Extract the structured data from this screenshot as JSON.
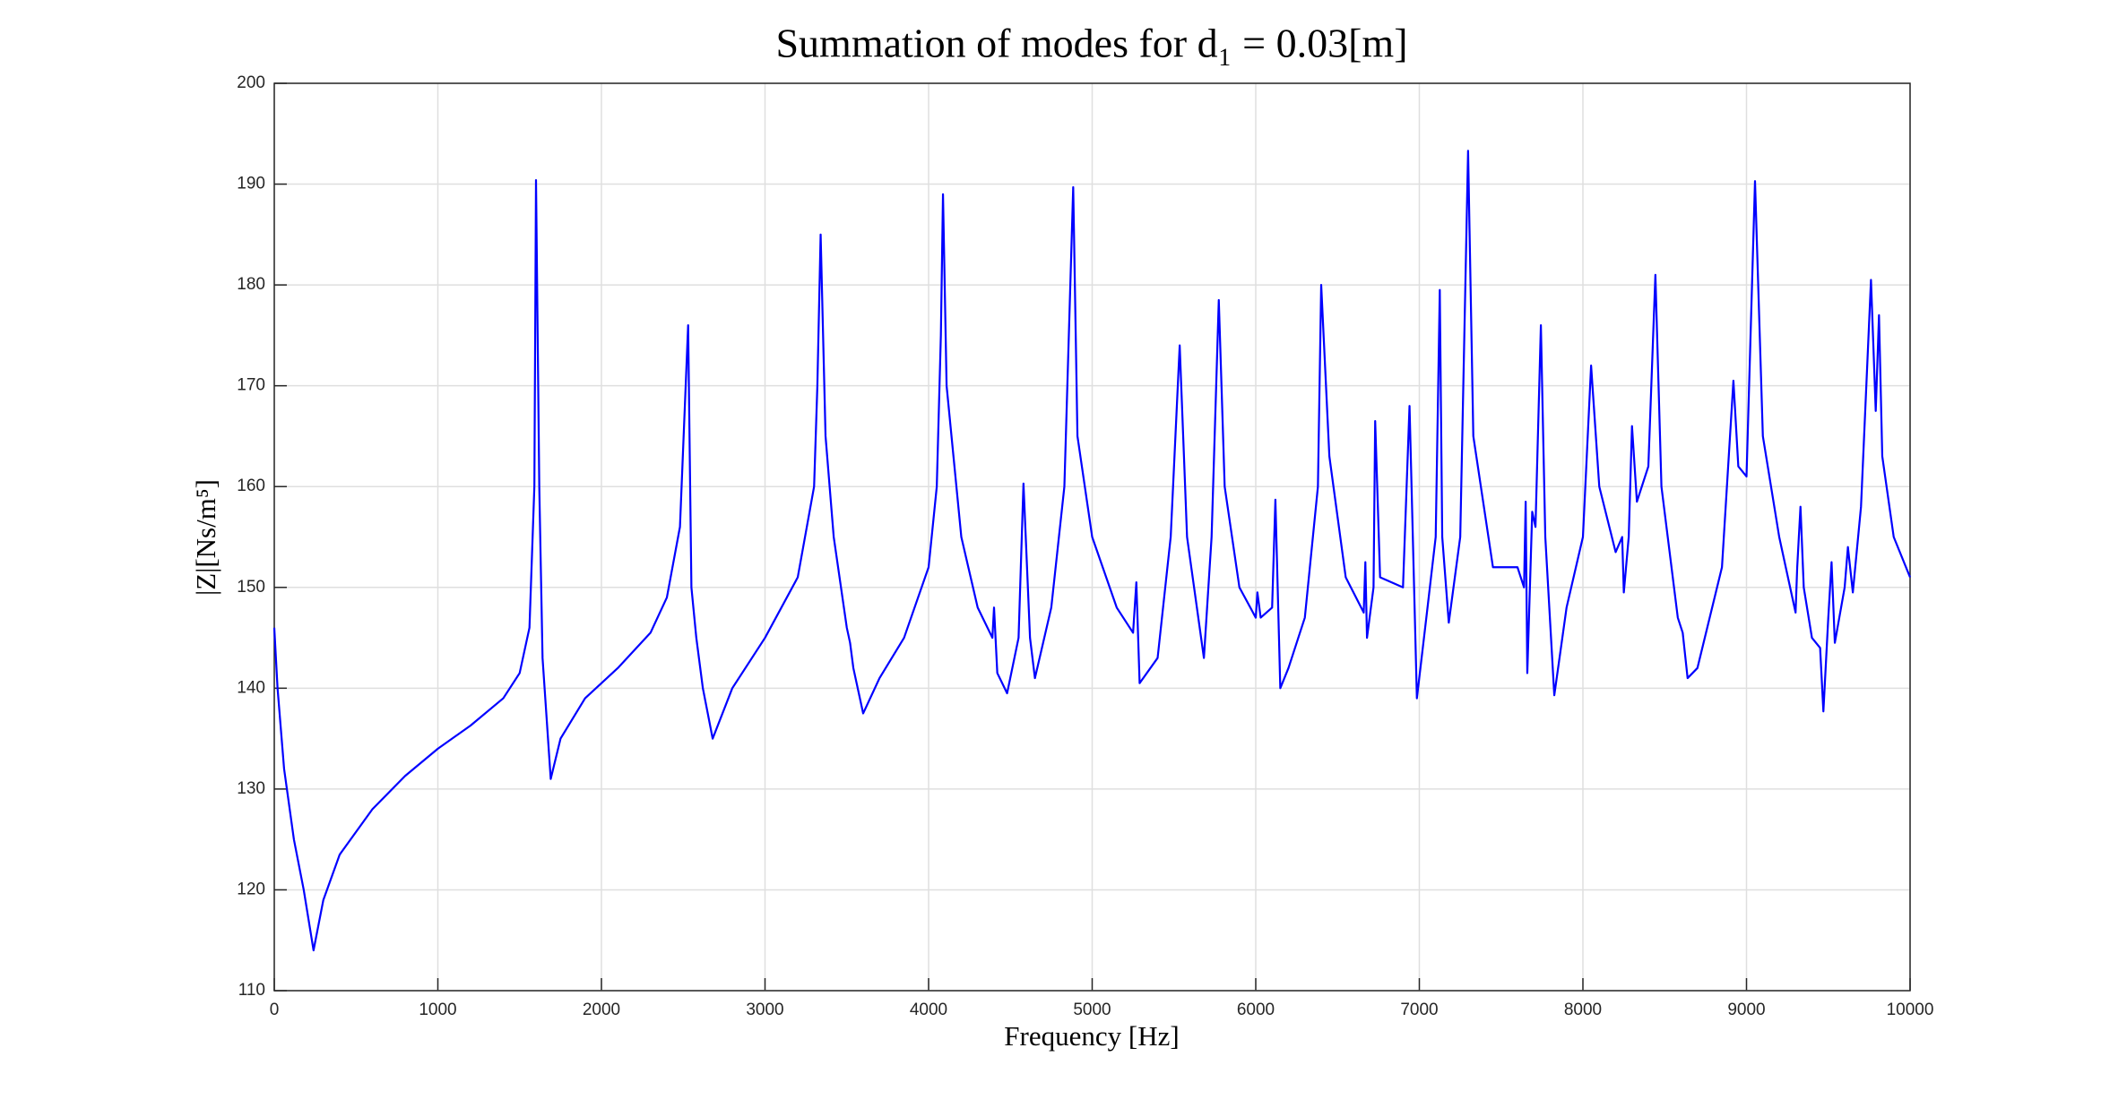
{
  "chart_data": {
    "type": "line",
    "title": "Summation of modes for d₁ = 0.03[m]",
    "x_label": "Frequency [Hz]",
    "y_label": "|Z|[Ns/m⁵]",
    "xlim": [
      0,
      10000
    ],
    "xticks": [
      0,
      1000,
      2000,
      3000,
      4000,
      5000,
      6000,
      7000,
      8000,
      9000,
      10000
    ],
    "ylim": [
      110,
      200
    ],
    "yticks": [
      110,
      120,
      130,
      140,
      150,
      160,
      170,
      180,
      190,
      200
    ],
    "grid": true,
    "series": [
      {
        "color": "#0000ff",
        "x": [
          0,
          20,
          60,
          120,
          180,
          240,
          300,
          400,
          600,
          800,
          1000,
          1200,
          1400,
          1500,
          1560,
          1590,
          1600,
          1620,
          1640,
          1690,
          1750,
          1900,
          2100,
          2300,
          2400,
          2480,
          2530,
          2550,
          2580,
          2620,
          2680,
          2800,
          3000,
          3200,
          3300,
          3320,
          3340,
          3370,
          3420,
          3500,
          3520,
          3540,
          3600,
          3700,
          3850,
          4000,
          4050,
          4075,
          4088,
          4110,
          4200,
          4300,
          4390,
          4400,
          4420,
          4480,
          4550,
          4580,
          4620,
          4650,
          4750,
          4830,
          4884,
          4910,
          5000,
          5150,
          5250,
          5270,
          5290,
          5400,
          5480,
          5535,
          5580,
          5683,
          5730,
          5774,
          5810,
          5900,
          6000,
          6010,
          6030,
          6100,
          6120,
          6150,
          6200,
          6300,
          6380,
          6400,
          6450,
          6550,
          6660,
          6670,
          6680,
          6720,
          6730,
          6760,
          6900,
          6940,
          6985,
          7050,
          7100,
          7125,
          7140,
          7180,
          7250,
          7298,
          7330,
          7450,
          7600,
          7640,
          7650,
          7660,
          7690,
          7710,
          7743,
          7770,
          7825,
          7900,
          8000,
          8050,
          8100,
          8200,
          8240,
          8250,
          8280,
          8300,
          8330,
          8400,
          8443,
          8480,
          8580,
          8610,
          8640,
          8700,
          8850,
          8920,
          8950,
          9000,
          9052,
          9100,
          9200,
          9300,
          9310,
          9330,
          9350,
          9400,
          9450,
          9470,
          9500,
          9520,
          9540,
          9600,
          9620,
          9650,
          9700,
          9761,
          9790,
          9810,
          9830,
          9900,
          10000
        ],
        "values": [
          146,
          140,
          132,
          125,
          120,
          114,
          119,
          123.5,
          128,
          131.3,
          134,
          136.3,
          139,
          141.5,
          146,
          160,
          190.4,
          160,
          143,
          131,
          135,
          139,
          142,
          145.5,
          149,
          156,
          176,
          150,
          145,
          140,
          135,
          140,
          145,
          151,
          160,
          170,
          185,
          165,
          155,
          146,
          144.5,
          142,
          137.5,
          141,
          145,
          152,
          160,
          175,
          189,
          170,
          155,
          148,
          145,
          148,
          141.5,
          139.5,
          145,
          160.3,
          145,
          141,
          148,
          160,
          189.7,
          165,
          155,
          148,
          145.5,
          150.5,
          140.5,
          143,
          155,
          174,
          155,
          143,
          155,
          178.5,
          160,
          150,
          147,
          149.5,
          147,
          148,
          158.7,
          140,
          142,
          147,
          160,
          180,
          163,
          151,
          147.5,
          152.5,
          145,
          150,
          166.5,
          151,
          150,
          168,
          139,
          148,
          155,
          179.5,
          155,
          146.5,
          155,
          193.3,
          165,
          152,
          152,
          150,
          158.5,
          141.5,
          157.5,
          156,
          176,
          155,
          139.3,
          148,
          155,
          172,
          160,
          153.5,
          155,
          149.5,
          155,
          166,
          158.5,
          162,
          181,
          160,
          147,
          145.5,
          141,
          142,
          152,
          170.5,
          162,
          161,
          190.3,
          165,
          155,
          147.5,
          152,
          158,
          150,
          145,
          144,
          137.7,
          147,
          152.5,
          144.5,
          150,
          154,
          149.5,
          158,
          180.5,
          167.5,
          177,
          163,
          155,
          151
        ]
      }
    ]
  }
}
